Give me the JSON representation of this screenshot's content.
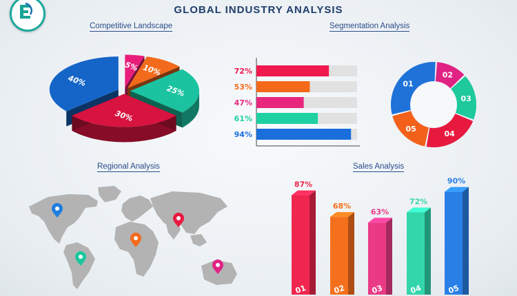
{
  "page_title": "GLOBAL INDUSTRY ANALYSIS",
  "sections": {
    "competitive": "Competitive Landscape",
    "segmentation": "Segmentation Analysis",
    "regional": "Regional Analysis",
    "sales": "Sales Analysis"
  },
  "icons": [
    "logo-icon",
    "location-pin-icon"
  ],
  "chart_data": [
    {
      "type": "pie",
      "title": "Competitive Landscape",
      "labels": [
        "40%",
        "5%",
        "10%",
        "25%",
        "30%"
      ],
      "values": [
        40,
        5,
        10,
        25,
        30
      ],
      "colors": [
        "#1565c8",
        "#e91e7a",
        "#f26a1b",
        "#1bc3a0",
        "#d8133f"
      ]
    },
    {
      "type": "bar",
      "orientation": "horizontal",
      "title": "Segmentation Analysis",
      "categories": [
        "72%",
        "53%",
        "47%",
        "61%",
        "94%"
      ],
      "values": [
        72,
        53,
        47,
        61,
        94
      ],
      "xlim": [
        0,
        100
      ],
      "colors": [
        "#f0194e",
        "#f56a1a",
        "#e8267e",
        "#1fd0a2",
        "#1a6fdd"
      ]
    },
    {
      "type": "pie",
      "subtype": "donut",
      "title": "Segmentation Analysis",
      "labels": [
        "01",
        "02",
        "03",
        "04",
        "05"
      ],
      "values": [
        30,
        12,
        18,
        22,
        18
      ],
      "colors": [
        "#1e72d8",
        "#e02283",
        "#1ec99b",
        "#e8193f",
        "#f2601a"
      ]
    },
    {
      "type": "bar",
      "title": "Sales Analysis",
      "categories": [
        "01",
        "02",
        "03",
        "04",
        "05"
      ],
      "values": [
        87,
        68,
        63,
        72,
        90
      ],
      "labels": [
        "87%",
        "68%",
        "63%",
        "72%",
        "90%"
      ],
      "ylim": [
        0,
        100
      ],
      "colors": [
        "#f0264f",
        "#f5701d",
        "#ea3a86",
        "#33d6ab",
        "#2a7fe6"
      ]
    }
  ],
  "map": {
    "title": "Regional Analysis",
    "pin_colors": [
      "#1e7ee0",
      "#1dc79e",
      "#f26a1b",
      "#e8193f",
      "#e02283"
    ]
  }
}
